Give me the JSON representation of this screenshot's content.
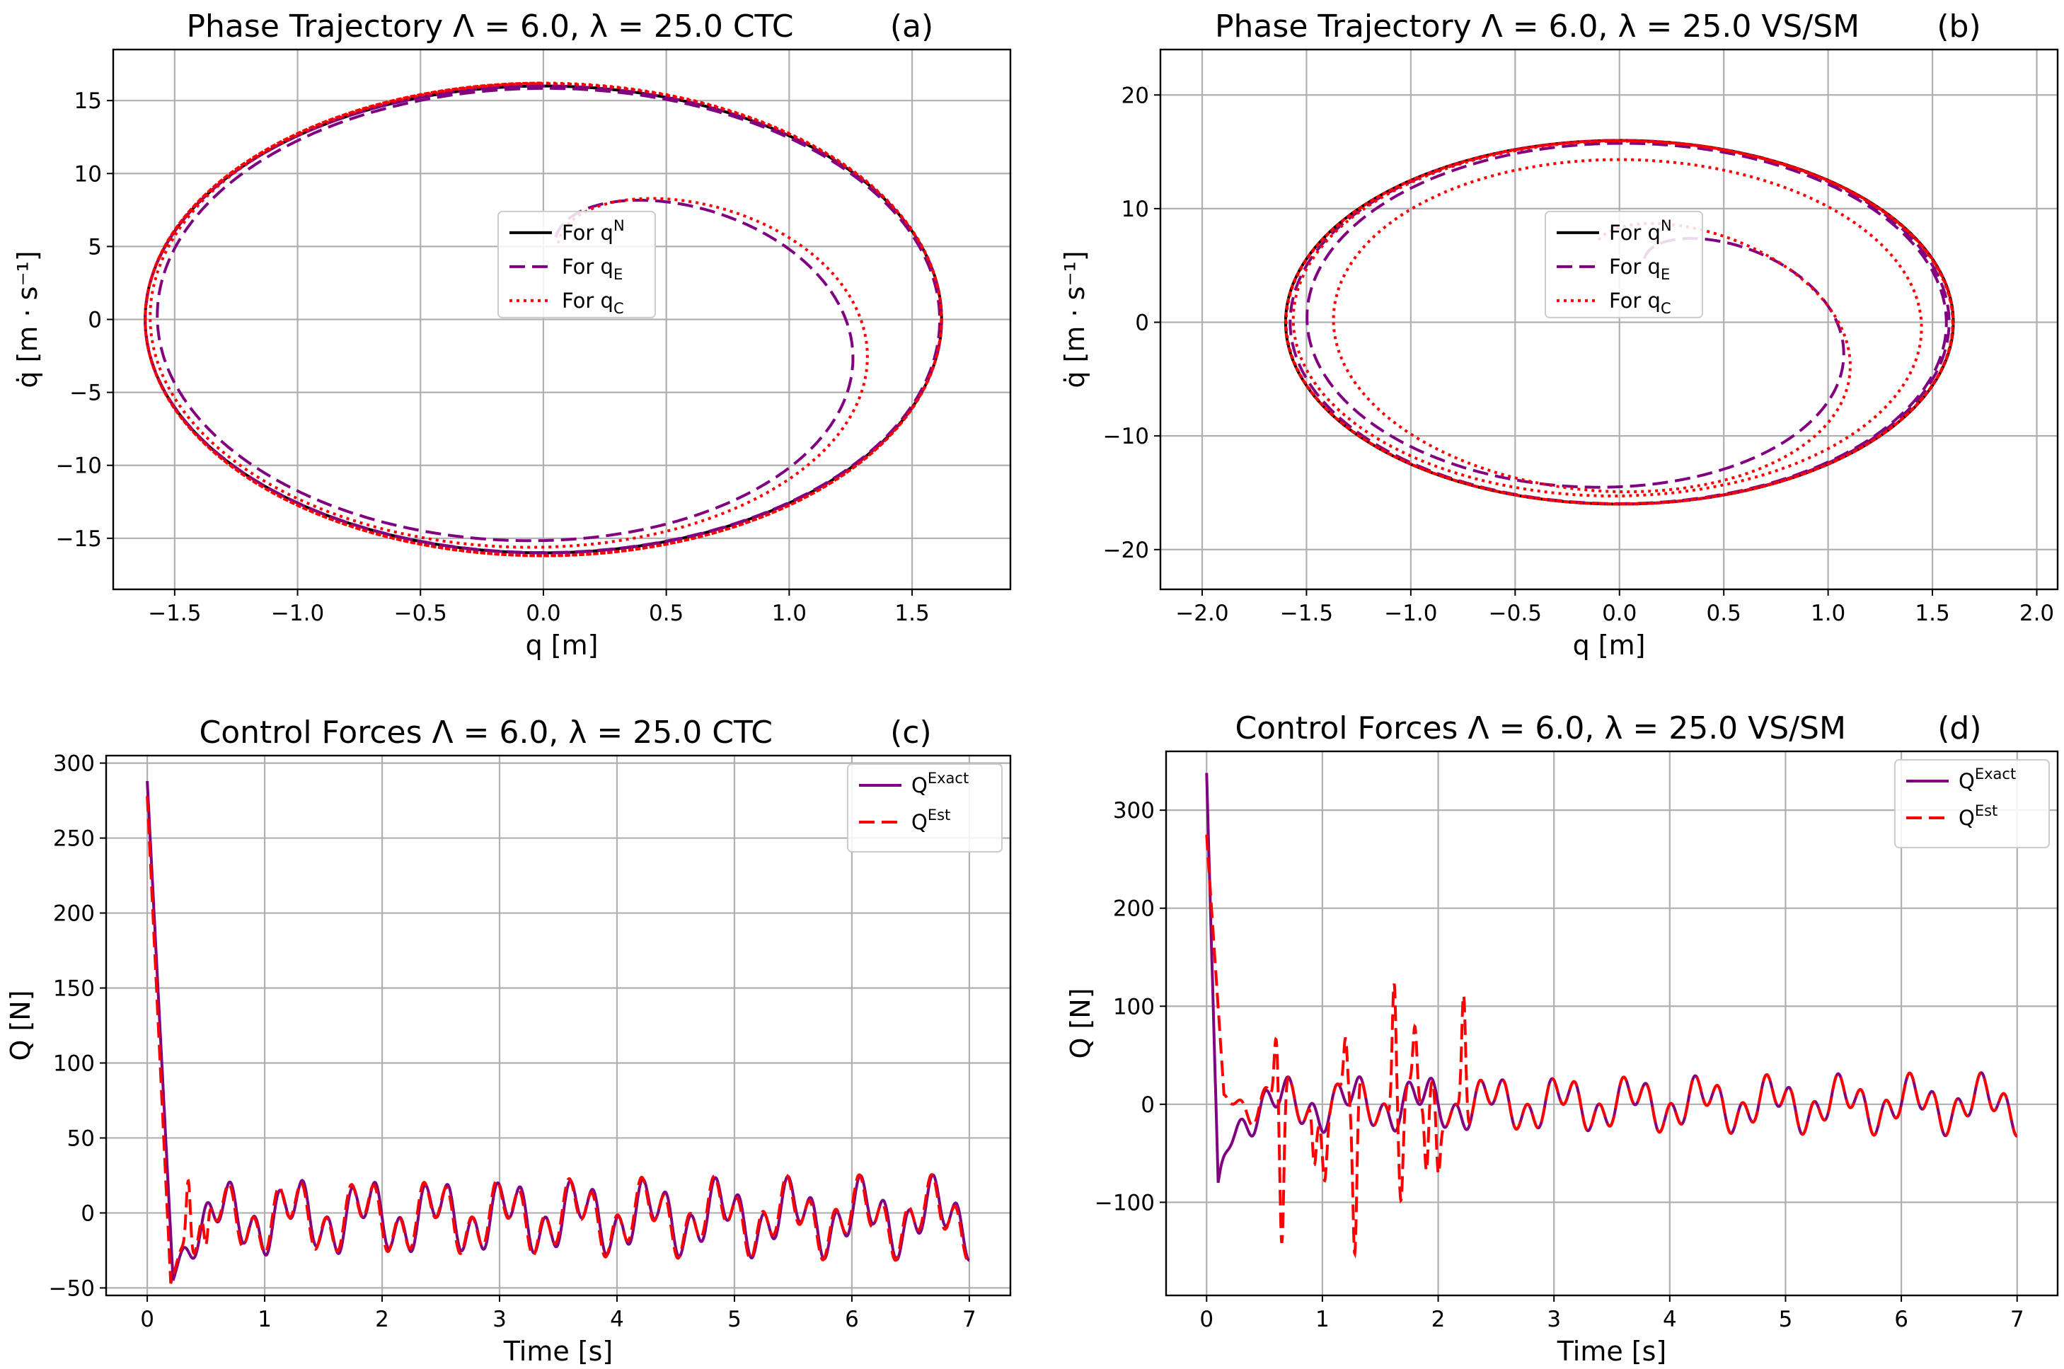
{
  "figure": {
    "panels": 4,
    "layout": "2x2"
  },
  "chart_data": [
    {
      "panel": "(a)",
      "type": "line",
      "kind": "phase",
      "title": "Phase Trajectory Λ = 6.0, λ = 25.0 CTC",
      "tag": "(a)",
      "xlabel": "q [m]",
      "ylabel": "q̇ [m · s⁻¹]",
      "xlim": [
        -1.75,
        1.9
      ],
      "ylim": [
        -18.5,
        18.5
      ],
      "xticks": [
        -1.5,
        -1.0,
        -0.5,
        0.0,
        0.5,
        1.0,
        1.5
      ],
      "xtick_labels": [
        "−1.5",
        "−1.0",
        "−0.5",
        "0.0",
        "0.5",
        "1.0",
        "1.5"
      ],
      "yticks": [
        -15,
        -10,
        -5,
        0,
        5,
        10,
        15
      ],
      "ytick_labels": [
        "−15",
        "−10",
        "−5",
        "0",
        "5",
        "10",
        "15"
      ],
      "grid": true,
      "legend_position": "center",
      "series": [
        {
          "name": "For q^N",
          "label_main": "For q",
          "label_sup": "N",
          "label_sub": "",
          "color": "#000000",
          "dash": "solid",
          "model": {
            "kind": "limit",
            "A": 1.62,
            "B": 16.0
          }
        },
        {
          "name": "For q_E",
          "label_main": "For q",
          "label_sup": "",
          "label_sub": "E",
          "color": "#800080",
          "dash": "dashed",
          "model": {
            "kind": "spiral",
            "A": 1.62,
            "B": 16.0,
            "q0": 0.0,
            "v0": 5.0,
            "turns": 3.0,
            "decay": 0.7,
            "skew": 0.05,
            "overshoot": 0.12
          }
        },
        {
          "name": "For q_C",
          "label_main": "For q",
          "label_sup": "",
          "label_sub": "C",
          "color": "#ff0000",
          "dash": "dotted",
          "model": {
            "kind": "spiral",
            "A": 1.62,
            "B": 16.2,
            "q0": 0.0,
            "v0": 5.0,
            "turns": 3.0,
            "decay": 0.9,
            "skew": 0.06,
            "overshoot": 0.04
          }
        }
      ]
    },
    {
      "panel": "(b)",
      "type": "line",
      "kind": "phase",
      "title": "Phase Trajectory Λ = 6.0, λ = 25.0 VS/SM",
      "tag": "(b)",
      "xlabel": "q [m]",
      "ylabel": "q̇ [m · s⁻¹]",
      "xlim": [
        -2.2,
        2.1
      ],
      "ylim": [
        -23.5,
        24.0
      ],
      "xticks": [
        -2.0,
        -1.5,
        -1.0,
        -0.5,
        0.0,
        0.5,
        1.0,
        1.5,
        2.0
      ],
      "xtick_labels": [
        "−2.0",
        "−1.5",
        "−1.0",
        "−0.5",
        "0.0",
        "0.5",
        "1.0",
        "1.5",
        "2.0"
      ],
      "yticks": [
        -20,
        -10,
        0,
        10,
        20
      ],
      "ytick_labels": [
        "−20",
        "−10",
        "0",
        "10",
        "20"
      ],
      "grid": true,
      "legend_position": "center",
      "series": [
        {
          "name": "For q^N",
          "label_main": "For q",
          "label_sup": "N",
          "label_sub": "",
          "color": "#000000",
          "dash": "solid",
          "model": {
            "kind": "limit",
            "A": 1.6,
            "B": 16.0
          }
        },
        {
          "name": "For q_E",
          "label_main": "For q",
          "label_sup": "",
          "label_sub": "E",
          "color": "#800080",
          "dash": "dashed",
          "model": {
            "kind": "spiral",
            "A": 1.58,
            "B": 16.0,
            "q0": 0.0,
            "v0": 5.5,
            "turns": 2.5,
            "decay": 0.6,
            "skew": 0.12,
            "overshoot": 0.02
          }
        },
        {
          "name": "For q_C",
          "label_main": "For q",
          "label_sup": "",
          "label_sub": "C",
          "color": "#ff0000",
          "dash": "dotted",
          "model": {
            "kind": "spiral",
            "A": 1.6,
            "B": 16.0,
            "q0": 0.0,
            "v0": 5.5,
            "turns": 6.0,
            "decay": 0.35,
            "skew": -0.1,
            "overshoot": 0.3
          }
        }
      ]
    },
    {
      "panel": "(c)",
      "type": "line",
      "kind": "force",
      "title": "Control Forces Λ = 6.0, λ = 25.0 CTC",
      "tag": "(c)",
      "xlabel": "Time [s]",
      "ylabel": "Q [N]",
      "xlim": [
        -0.35,
        7.35
      ],
      "ylim": [
        -55,
        305
      ],
      "xticks": [
        0,
        1,
        2,
        3,
        4,
        5,
        6,
        7
      ],
      "xtick_labels": [
        "0",
        "1",
        "2",
        "3",
        "4",
        "5",
        "6",
        "7"
      ],
      "yticks": [
        -50,
        0,
        50,
        100,
        150,
        200,
        250,
        300
      ],
      "ytick_labels": [
        "−50",
        "0",
        "50",
        "100",
        "150",
        "200",
        "250",
        "300"
      ],
      "grid": true,
      "legend_position": "top-right",
      "series": [
        {
          "name": "Q^Exact",
          "label_main": "Q",
          "label_sup": "Exact",
          "label_sub": "",
          "color": "#800080",
          "dash": "solid",
          "model": {
            "peak": 288,
            "peak_t": 0.0,
            "drop": 0.22,
            "dip": -45,
            "amp": 22,
            "freq": 3.25,
            "offset": -3,
            "noise": []
          }
        },
        {
          "name": "Q^Est",
          "label_main": "Q",
          "label_sup": "Est",
          "label_sub": "",
          "color": "#ff0000",
          "dash": "dashed",
          "model": {
            "peak": 278,
            "peak_t": 0.0,
            "drop": 0.2,
            "dip": -47,
            "amp": 22,
            "freq": 3.25,
            "offset": -3,
            "phase": 0.25,
            "noise": [
              {
                "t": 0.35,
                "v": 48
              },
              {
                "t": 0.5,
                "v": -30
              }
            ]
          }
        }
      ]
    },
    {
      "panel": "(d)",
      "type": "line",
      "kind": "force",
      "title": "Control Forces Λ = 6.0, λ = 25.0 VS/SM",
      "tag": "(d)",
      "xlabel": "Time [s]",
      "ylabel": "Q [N]",
      "xlim": [
        -0.35,
        7.35
      ],
      "ylim": [
        -195,
        360
      ],
      "xticks": [
        0,
        1,
        2,
        3,
        4,
        5,
        6,
        7
      ],
      "xtick_labels": [
        "0",
        "1",
        "2",
        "3",
        "4",
        "5",
        "6",
        "7"
      ],
      "yticks": [
        -100,
        0,
        100,
        200,
        300
      ],
      "ytick_labels": [
        "−100",
        "0",
        "100",
        "200",
        "300"
      ],
      "grid": true,
      "legend_position": "top-right",
      "series": [
        {
          "name": "Q^Exact",
          "label_main": "Q",
          "label_sup": "Exact",
          "label_sub": "",
          "color": "#800080",
          "dash": "solid",
          "model": {
            "peak": 338,
            "peak_t": 0.0,
            "drop": 0.1,
            "dip": -80,
            "amp": 25,
            "freq": 3.25,
            "offset": 0,
            "noise": []
          }
        },
        {
          "name": "Q^Est",
          "label_main": "Q",
          "label_sup": "Est",
          "label_sub": "",
          "color": "#ff0000",
          "dash": "dashed",
          "model": {
            "peak": 275,
            "peak_t": 0.0,
            "drop": 0.15,
            "dip": 10,
            "amp": 25,
            "freq": 3.25,
            "offset": 0,
            "phase": 0.0,
            "noise": [
              {
                "t": 0.65,
                "v": -155
              },
              {
                "t": 1.28,
                "v": -170
              },
              {
                "t": 1.62,
                "v": 150
              },
              {
                "t": 1.68,
                "v": -90
              },
              {
                "t": 1.8,
                "v": 70
              },
              {
                "t": 1.9,
                "v": -85
              },
              {
                "t": 2.22,
                "v": 132
              },
              {
                "t": 2.0,
                "v": -70
              },
              {
                "t": 0.93,
                "v": -60
              },
              {
                "t": 1.02,
                "v": -50
              },
              {
                "t": 0.6,
                "v": 70
              },
              {
                "t": 1.2,
                "v": 65
              }
            ]
          }
        }
      ]
    }
  ]
}
